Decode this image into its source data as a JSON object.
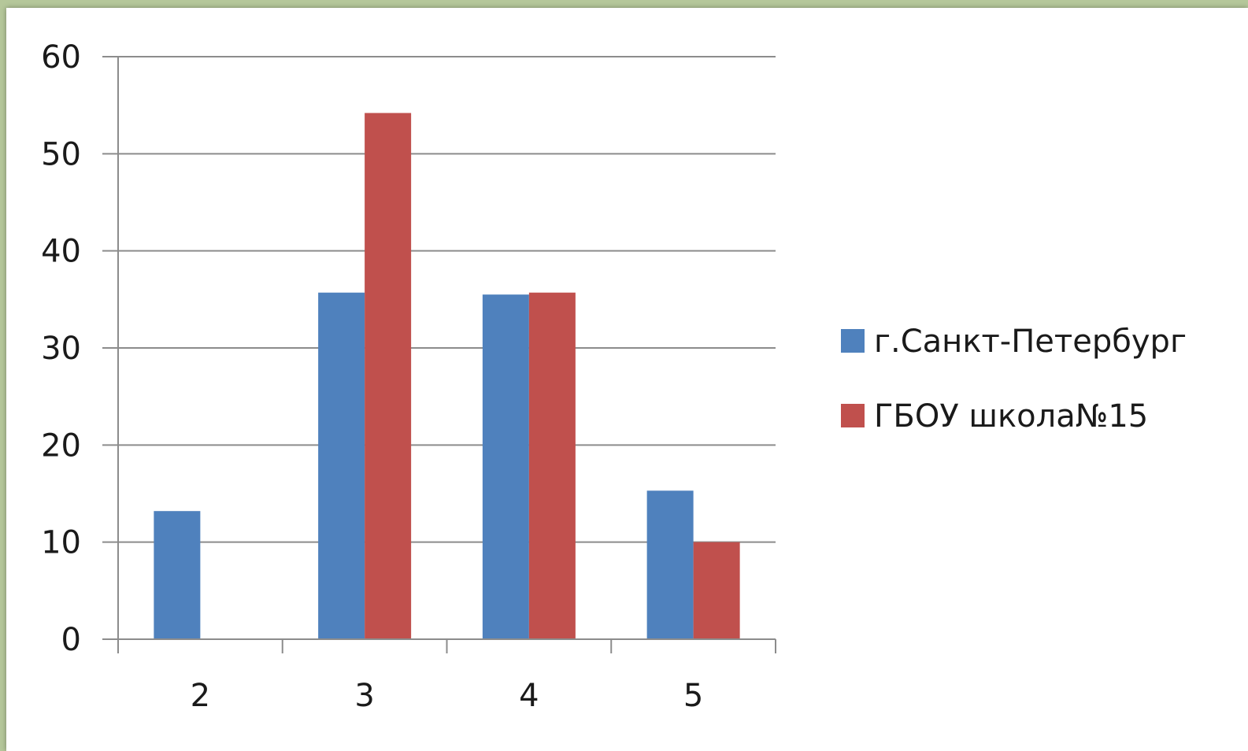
{
  "chart_data": {
    "type": "bar",
    "categories": [
      "2",
      "3",
      "4",
      "5"
    ],
    "series": [
      {
        "name": "г.Санкт-Петербург",
        "values": [
          13.2,
          35.7,
          35.5,
          15.3
        ],
        "color": "#4f81bd"
      },
      {
        "name": "ГБОУ школа№15",
        "values": [
          0,
          54.2,
          35.7,
          10.0
        ],
        "color": "#c0504d"
      }
    ],
    "ylim": [
      0,
      60
    ],
    "yticks": [
      0,
      10,
      20,
      30,
      40,
      50,
      60
    ],
    "grid": true,
    "legend": "right"
  }
}
